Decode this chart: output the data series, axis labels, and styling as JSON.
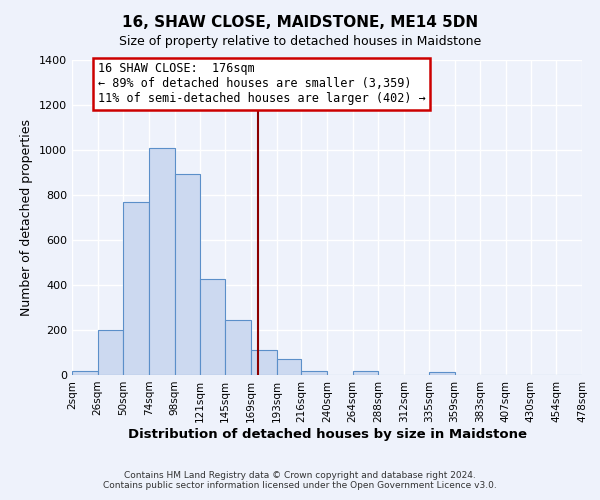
{
  "title": "16, SHAW CLOSE, MAIDSTONE, ME14 5DN",
  "subtitle": "Size of property relative to detached houses in Maidstone",
  "xlabel": "Distribution of detached houses by size in Maidstone",
  "ylabel": "Number of detached properties",
  "bin_labels": [
    "2sqm",
    "26sqm",
    "50sqm",
    "74sqm",
    "98sqm",
    "121sqm",
    "145sqm",
    "169sqm",
    "193sqm",
    "216sqm",
    "240sqm",
    "264sqm",
    "288sqm",
    "312sqm",
    "335sqm",
    "359sqm",
    "383sqm",
    "407sqm",
    "430sqm",
    "454sqm",
    "478sqm"
  ],
  "bin_edges": [
    2,
    26,
    50,
    74,
    98,
    121,
    145,
    169,
    193,
    216,
    240,
    264,
    288,
    312,
    335,
    359,
    383,
    407,
    430,
    454,
    478
  ],
  "bar_heights": [
    20,
    200,
    770,
    1010,
    895,
    425,
    245,
    110,
    70,
    20,
    0,
    20,
    0,
    0,
    15,
    0,
    0,
    0,
    0,
    0
  ],
  "bar_color": "#ccd9f0",
  "bar_edgecolor": "#5b8fc9",
  "vline_x": 176,
  "vline_color": "#8b0000",
  "ylim": [
    0,
    1400
  ],
  "yticks": [
    0,
    200,
    400,
    600,
    800,
    1000,
    1200,
    1400
  ],
  "annotation_title": "16 SHAW CLOSE:  176sqm",
  "annotation_line1": "← 89% of detached houses are smaller (3,359)",
  "annotation_line2": "11% of semi-detached houses are larger (402) →",
  "annotation_box_color": "#ffffff",
  "annotation_box_edgecolor": "#cc0000",
  "footer1": "Contains HM Land Registry data © Crown copyright and database right 2024.",
  "footer2": "Contains public sector information licensed under the Open Government Licence v3.0.",
  "background_color": "#eef2fb",
  "grid_color": "#ffffff",
  "title_fontsize": 11,
  "subtitle_fontsize": 9
}
